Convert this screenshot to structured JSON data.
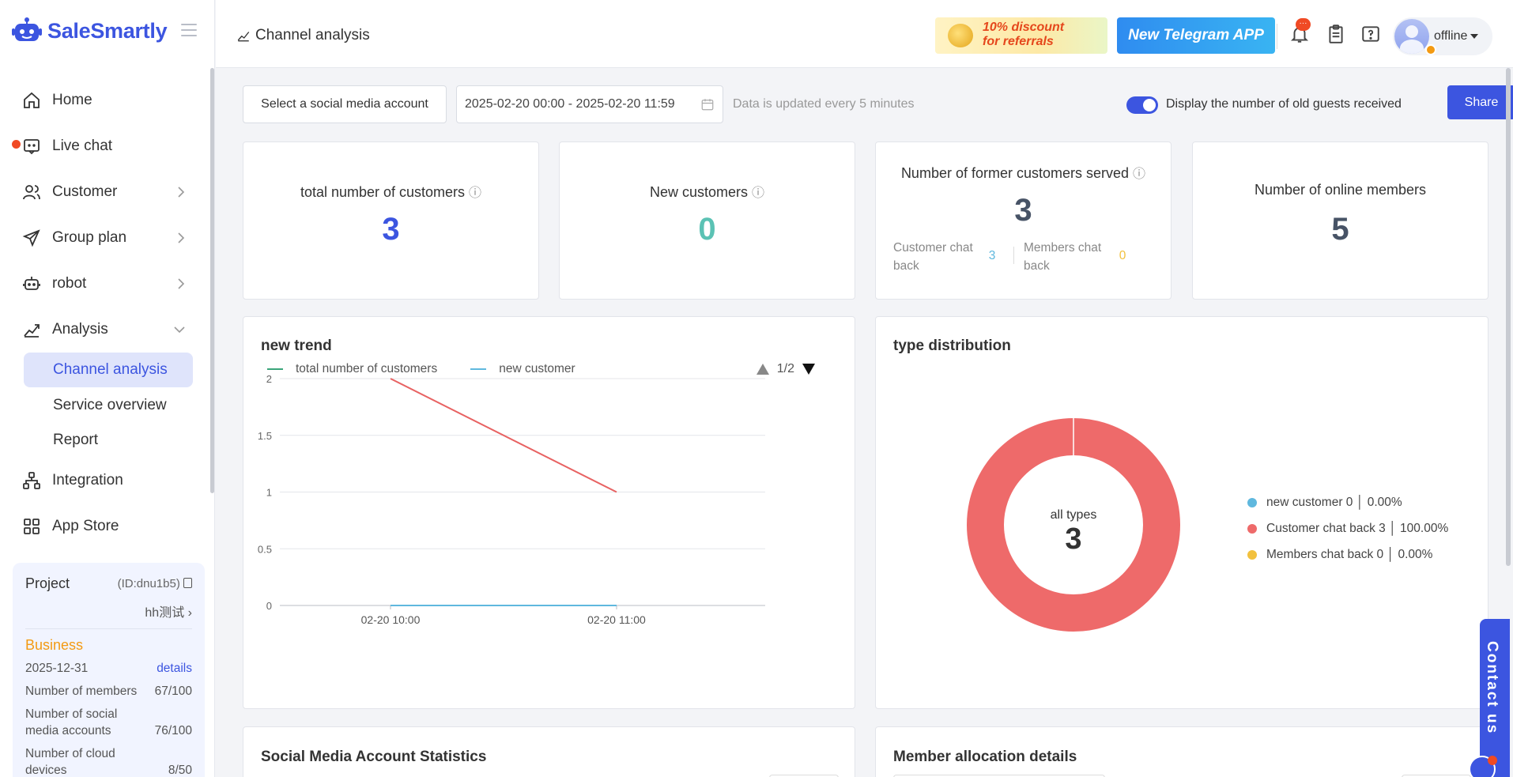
{
  "app": {
    "name": "SaleSmartly"
  },
  "sidebar": {
    "items": [
      {
        "label": "Home",
        "icon": "home-icon"
      },
      {
        "label": "Live chat",
        "icon": "chat-icon"
      },
      {
        "label": "Customer",
        "icon": "users-icon"
      },
      {
        "label": "Group plan",
        "icon": "send-icon"
      },
      {
        "label": "robot",
        "icon": "robot-icon"
      },
      {
        "label": "Analysis",
        "icon": "analytics-icon"
      }
    ],
    "analysis_sub": [
      {
        "label": "Channel analysis",
        "active": true
      },
      {
        "label": "Service overview"
      },
      {
        "label": "Report"
      }
    ],
    "items_bottom": [
      {
        "label": "Integration",
        "icon": "integration-icon"
      },
      {
        "label": "App Store",
        "icon": "app-store-icon"
      }
    ]
  },
  "project": {
    "title": "Project",
    "id": "(ID:dnu1b5)",
    "name": "hh测试",
    "plan": "Business",
    "expiry": "2025-12-31",
    "details_link": "details",
    "stats": [
      {
        "label": "Number of members",
        "value": "67/100"
      },
      {
        "label": "Number of social media accounts",
        "value": "76/100"
      },
      {
        "label": "Number of cloud devices",
        "value": "8/50"
      }
    ]
  },
  "header": {
    "breadcrumb": "Channel analysis",
    "banner_discount": {
      "line1": "10% discount",
      "line2": "for referrals"
    },
    "banner_telegram": "New Telegram APP",
    "notification_badge": "···",
    "user_status": "offline"
  },
  "toolbar": {
    "account_select": "Select a social media account",
    "date_range": "2025-02-20 00:00 - 2025-02-20 11:59",
    "update_hint": "Data is updated every 5 minutes",
    "toggle_label": "Display the number of old guests received",
    "toggle_on": true,
    "share_label": "Share"
  },
  "stats": {
    "total": {
      "label": "total number of customers",
      "info": "ⓘ",
      "value": "3",
      "color": "#3c55e0"
    },
    "new": {
      "label": "New customers",
      "info": "ⓘ",
      "value": "0",
      "color": "#5bc2b4"
    },
    "former": {
      "label": "Number of former customers served",
      "info": "ⓘ",
      "value": "3",
      "color": "#475366",
      "customer_back_label": "Customer chat back",
      "customer_back_value": "3",
      "members_back_label": "Members chat back",
      "members_back_value": "0"
    },
    "online": {
      "label": "Number of online members",
      "value": "5",
      "color": "#475366"
    }
  },
  "trend": {
    "title": "new trend",
    "pager": "1/2",
    "chart_data": {
      "type": "line",
      "x": [
        "02-20 10:00",
        "02-20 11:00"
      ],
      "series": [
        {
          "name": "total number of customers",
          "values": [
            2,
            1
          ],
          "color": "#e86262",
          "legend_color": "#3aa57a"
        },
        {
          "name": "new customer",
          "values": [
            0,
            0
          ],
          "color": "#5fb8de",
          "legend_color": "#5fb8de"
        }
      ],
      "y_ticks": [
        "0",
        "0.5",
        "1",
        "1.5",
        "2"
      ],
      "ylim": [
        0,
        2
      ],
      "grid": true
    }
  },
  "distribution": {
    "title": "type distribution",
    "center_label": "all types",
    "center_value": "3",
    "chart_data": {
      "type": "pie",
      "labels": [
        "new customer",
        "Customer chat back",
        "Members chat back"
      ],
      "values": [
        0,
        3,
        0
      ],
      "colors": [
        "#5fb8de",
        "#ee6a6a",
        "#f2c13e"
      ],
      "legend_text": [
        "new customer 0 │ 0.00%",
        "Customer chat back 3 │ 100.00%",
        "Members chat back 0 │ 0.00%"
      ]
    }
  },
  "bottom": {
    "social_title": "Social Media Account Statistics",
    "member_title": "Member allocation details"
  },
  "contact": {
    "label": "Contact us"
  }
}
